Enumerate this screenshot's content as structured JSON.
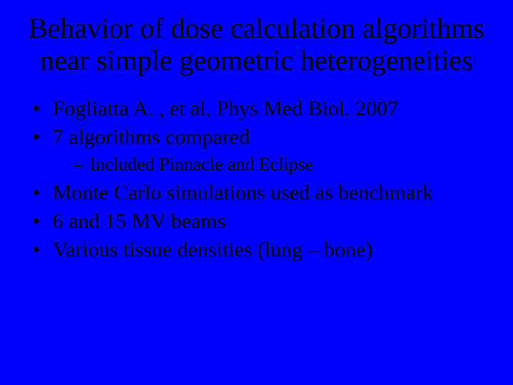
{
  "background_color": "#0000fe",
  "text_color": "#000000",
  "font_family": "Times New Roman",
  "title": {
    "text": "Behavior of dose calculation algorithms near simple geometric heterogeneities",
    "fontsize": 40,
    "align": "center"
  },
  "bullets": [
    {
      "level": 1,
      "text": "Fogliatta A. , et al. Phys Med Biol. 2007"
    },
    {
      "level": 1,
      "text": "7 algorithms compared"
    },
    {
      "level": 2,
      "text": "Included Pinnacle and Eclipse"
    },
    {
      "level": 1,
      "text": "Monte Carlo simulations used as benchmark"
    },
    {
      "level": 1,
      "text": "6 and 15 MV beams"
    },
    {
      "level": 1,
      "text": "Various tissue densities (lung – bone)"
    }
  ],
  "bullet_fontsize_level1": 30,
  "bullet_fontsize_level2": 26
}
